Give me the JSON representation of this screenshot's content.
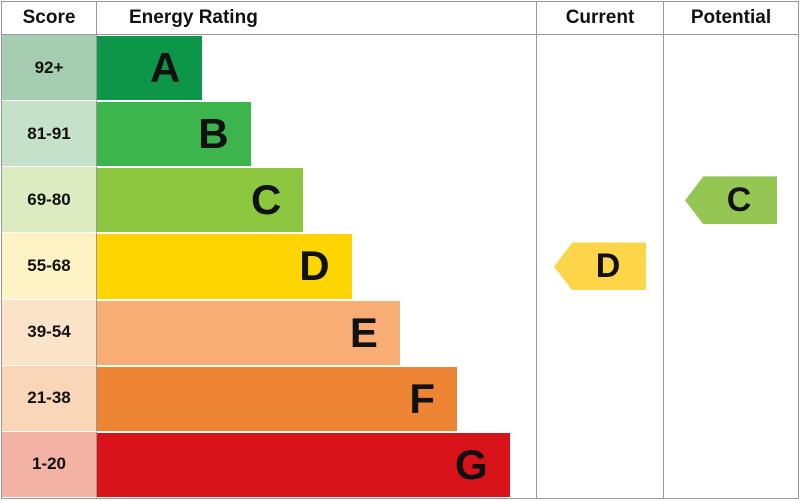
{
  "header": {
    "score": "Score",
    "energy_rating": "Energy Rating",
    "current": "Current",
    "potential": "Potential"
  },
  "chart_data": {
    "type": "bar",
    "title": "Energy Rating",
    "columns": [
      "Score",
      "Energy Rating",
      "Current",
      "Potential"
    ],
    "bands": [
      {
        "letter": "A",
        "score_range": "92+",
        "color": "#0d9648",
        "score_bg": "#a6ccb1",
        "width_pct": 24
      },
      {
        "letter": "B",
        "score_range": "81-91",
        "color": "#3cb64c",
        "score_bg": "#c6e1c9",
        "width_pct": 35
      },
      {
        "letter": "C",
        "score_range": "69-80",
        "color": "#8dc63f",
        "score_bg": "#dcebc0",
        "width_pct": 47
      },
      {
        "letter": "D",
        "score_range": "55-68",
        "color": "#ffd500",
        "score_bg": "#fdf3c5",
        "width_pct": 58
      },
      {
        "letter": "E",
        "score_range": "39-54",
        "color": "#f7ad74",
        "score_bg": "#fbe3c8",
        "width_pct": 69
      },
      {
        "letter": "F",
        "score_range": "21-38",
        "color": "#ee8534",
        "score_bg": "#f9d6b7",
        "width_pct": 82
      },
      {
        "letter": "G",
        "score_range": "1-20",
        "color": "#d9131a",
        "score_bg": "#f2b3a4",
        "width_pct": 94
      }
    ],
    "current": {
      "letter": "D",
      "score_range": "55-68",
      "color": "#fcd648",
      "band_index": 3
    },
    "potential": {
      "letter": "C",
      "score_range": "69-80",
      "color": "#95c654",
      "band_index": 2
    }
  }
}
